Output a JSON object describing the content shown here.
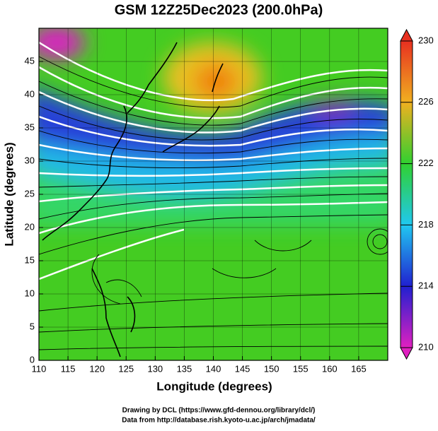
{
  "chart_data": {
    "type": "map",
    "title": "GSM 12Z25Dec2023 (200.0hPa)",
    "x_label": "Longitude (degrees)",
    "y_label": "Latitude  (degrees)",
    "xlim": [
      110,
      170
    ],
    "xticks": [
      110,
      115,
      120,
      125,
      130,
      135,
      140,
      145,
      150,
      155,
      160,
      165
    ],
    "ylim": [
      0,
      50
    ],
    "yticks": [
      0,
      5,
      10,
      15,
      20,
      25,
      30,
      35,
      40,
      45
    ],
    "grid": true,
    "colorbar": {
      "lim": [
        210,
        230
      ],
      "ticks": [
        210,
        214,
        218,
        222,
        226,
        230
      ],
      "colors": [
        "#e020c0",
        "#2020d0",
        "#20c8f0",
        "#30d030",
        "#f0b020",
        "#e83020"
      ]
    },
    "credits": [
      "Drawing by DCL (https://www.gfd-dennou.org/library/dcl/)",
      "Data from http://database.rish.kyoto-u.ac.jp/arch/jmadata/"
    ]
  }
}
